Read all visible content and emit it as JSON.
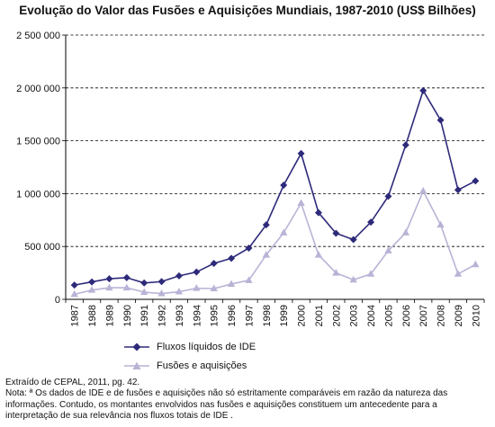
{
  "chart_data": {
    "type": "line",
    "title": "Evolução do Valor das Fusões e Aquisições Mundiais, 1987-2010 (US$ Bilhões)",
    "categories": [
      "1987",
      "1988",
      "1989",
      "1990",
      "1991",
      "1992",
      "1993",
      "1994",
      "1995",
      "1996",
      "1997",
      "1998",
      "1999",
      "2000",
      "2001",
      "2002",
      "2003",
      "2004",
      "2005",
      "2006",
      "2007",
      "2008",
      "2009",
      "2010"
    ],
    "ylim": [
      0,
      2500000
    ],
    "yticks": [
      0,
      500000,
      1000000,
      1500000,
      2000000,
      2500000
    ],
    "ytick_labels": [
      "0",
      "500 000",
      "1 000 000",
      "1 500 000",
      "2 000 000",
      "2 500 000"
    ],
    "grid": "horizontal-dashed",
    "series": [
      {
        "name": "Fluxos líquidos de IDE",
        "color": "#2e2a7a",
        "marker": "diamond",
        "values": [
          135000,
          165000,
          195000,
          205000,
          155000,
          168000,
          222000,
          258000,
          340000,
          388000,
          485000,
          705000,
          1080000,
          1380000,
          820000,
          625000,
          565000,
          730000,
          975000,
          1460000,
          1975000,
          1695000,
          1035000,
          1120000
        ]
      },
      {
        "name": "Fusões e aquisições",
        "color": "#b8b4d6",
        "marker": "triangle",
        "values": [
          48000,
          88000,
          110000,
          110000,
          68000,
          55000,
          72000,
          105000,
          102000,
          145000,
          180000,
          420000,
          630000,
          910000,
          420000,
          250000,
          185000,
          240000,
          460000,
          630000,
          1025000,
          705000,
          240000,
          330000
        ]
      }
    ]
  },
  "footer": {
    "source": "Extraído de CEPAL, 2011, pg. 42.",
    "note_lines": [
      "Nota: ª Os dados de IDE e de fusões e aquisições não só estritamente comparáveis em razão da natureza das",
      "informações. Contudo, os montantes envolvidos nas fusões e aquisições constituem um antecedente para a",
      "interpretação de sua relevância nos fluxos totais de IDE ."
    ]
  }
}
